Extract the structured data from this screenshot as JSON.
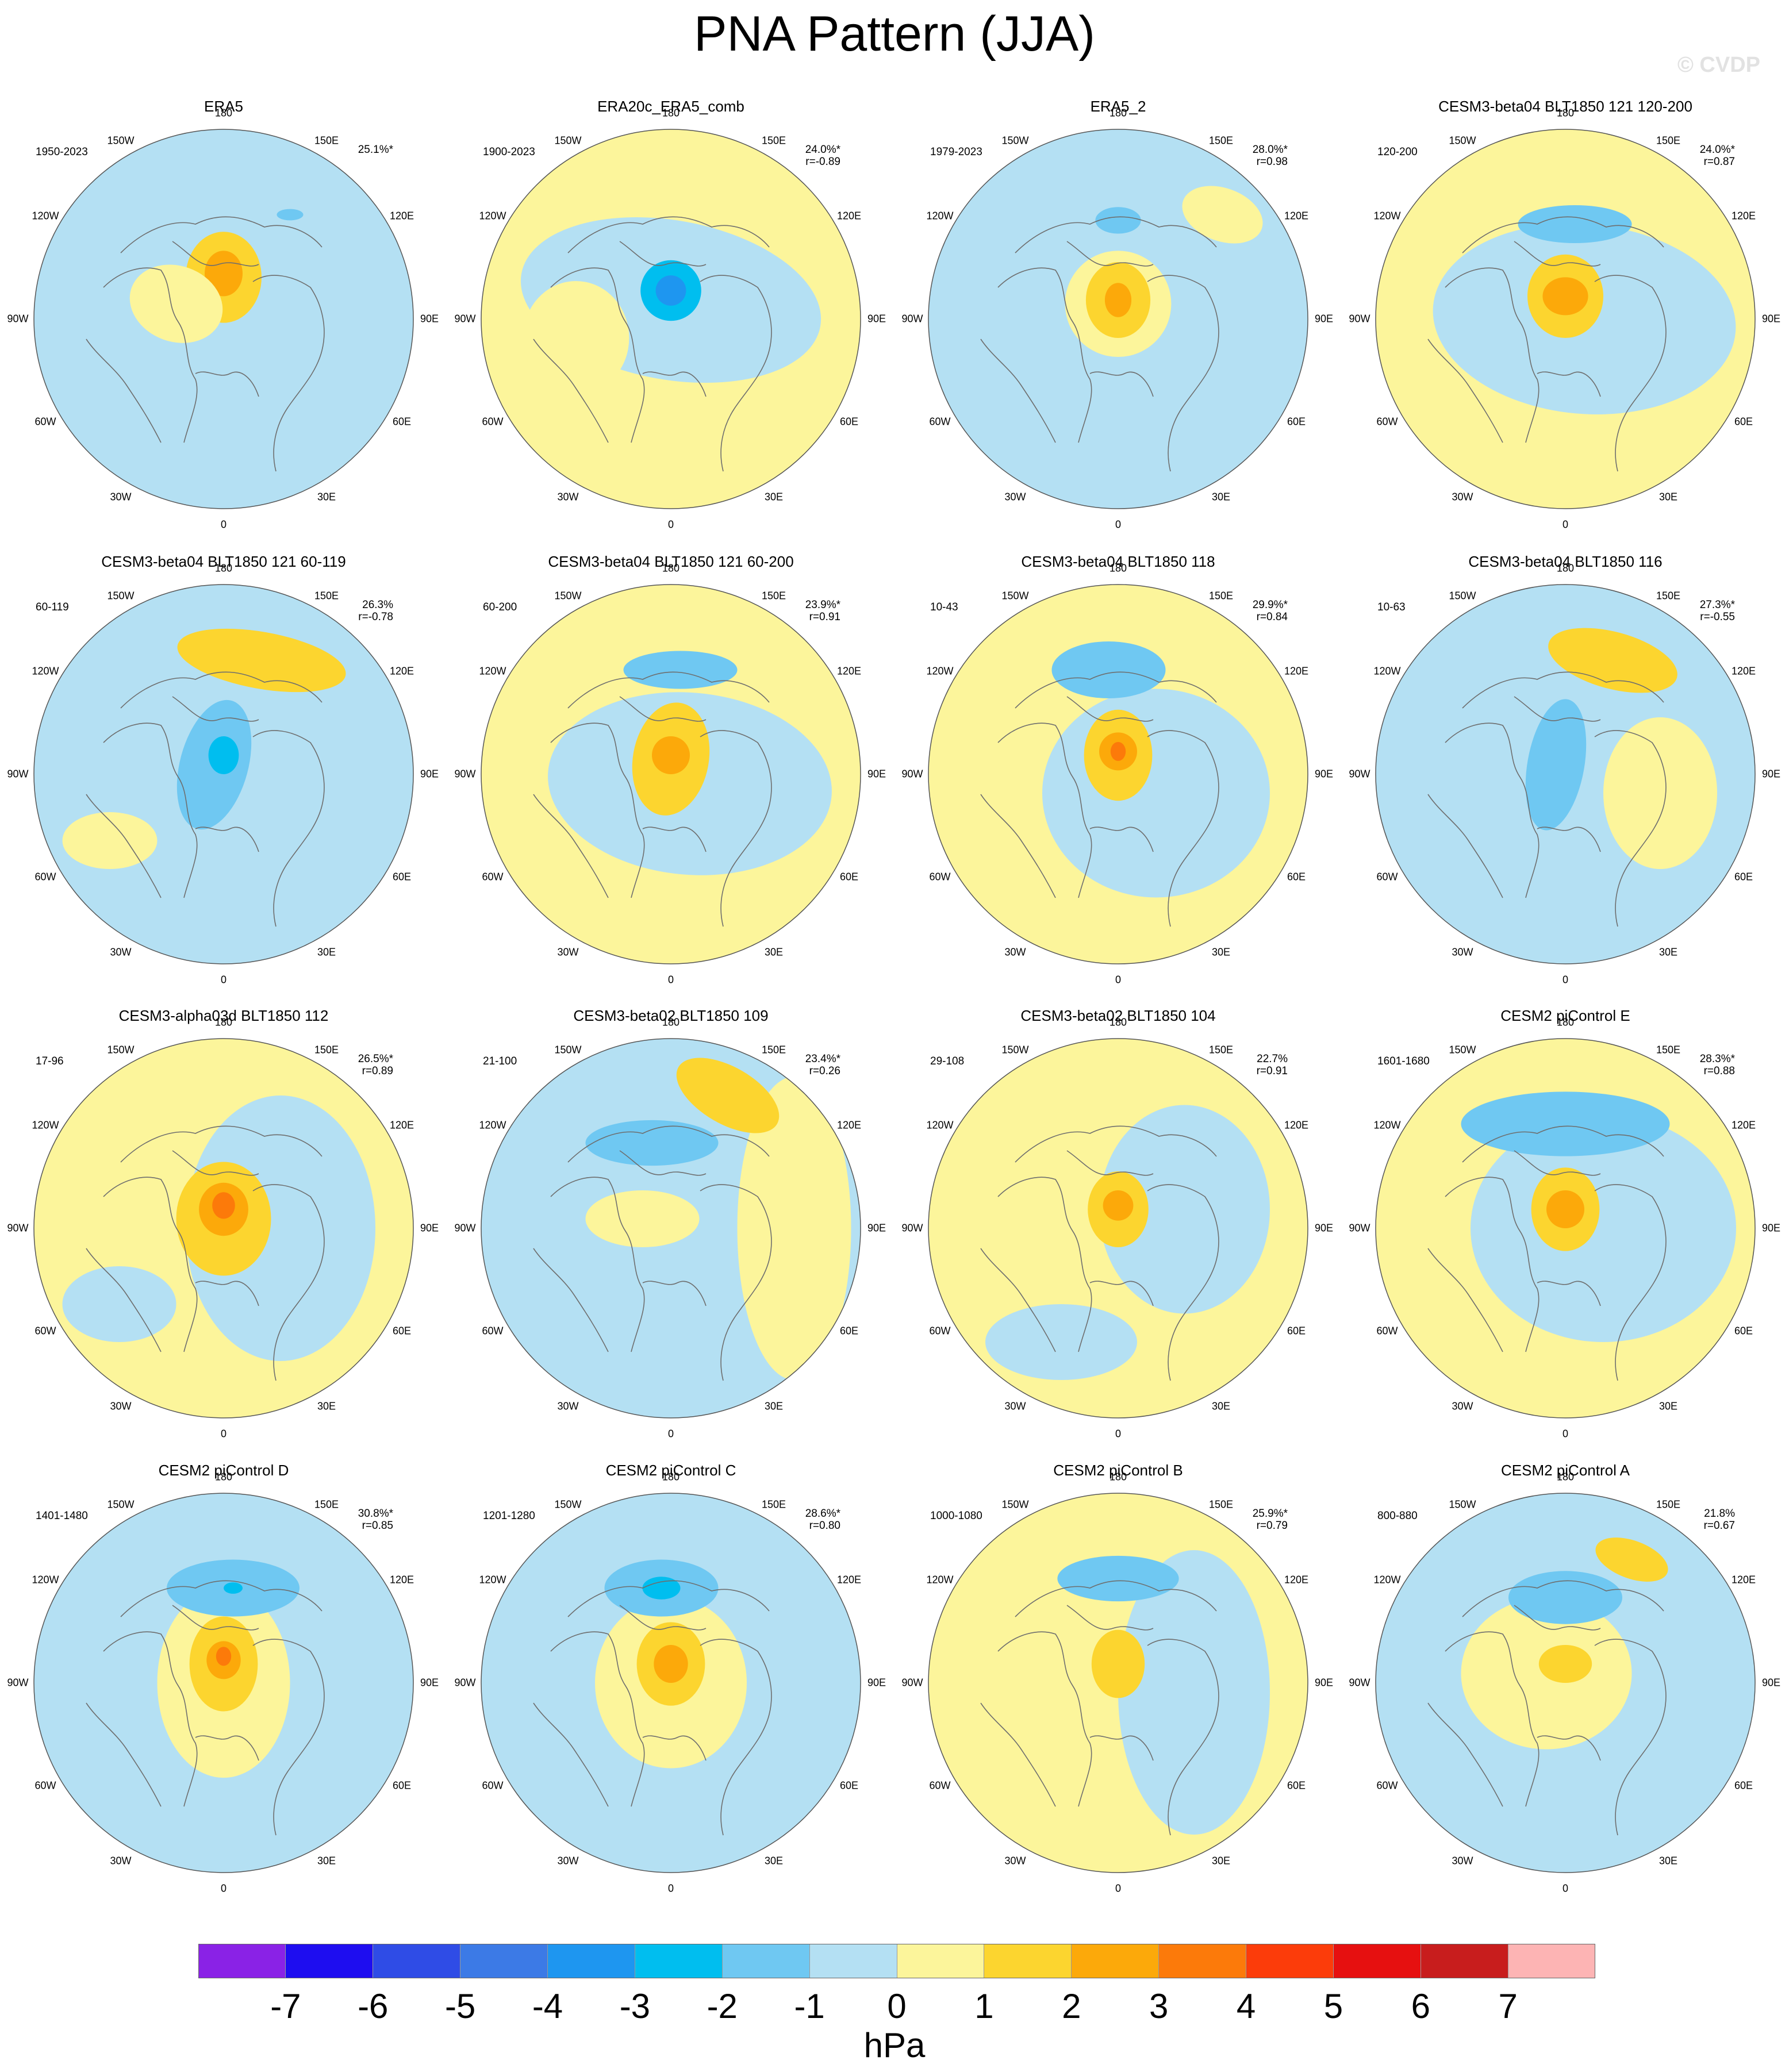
{
  "title": "PNA Pattern (JJA)",
  "watermark": "© CVDP",
  "lon_labels": {
    "top": "180",
    "bottom": "0",
    "upper_left": "150W",
    "upper_right": "150E",
    "left_upper": "120W",
    "right_upper": "120E",
    "left": "90W",
    "right": "90E",
    "left_lower": "60W",
    "right_lower": "60E",
    "lower_left": "30W",
    "lower_right": "30E"
  },
  "panels": [
    {
      "title": "ERA5",
      "years": "1950-2023",
      "pct": "25.1%*",
      "r": "",
      "background": 0,
      "features": [
        [
          0.0,
          -0.22,
          0.2,
          0.24,
          0,
          2
        ],
        [
          0.0,
          -0.24,
          0.1,
          0.12,
          0,
          3
        ],
        [
          -0.25,
          -0.08,
          0.25,
          0.2,
          20,
          1
        ],
        [
          0.35,
          -0.55,
          0.07,
          0.03,
          0,
          -1
        ]
      ]
    },
    {
      "title": "ERA20c_ERA5_comb",
      "years": "1900-2023",
      "pct": "24.0%*",
      "r": "r=-0.89",
      "background": 1,
      "features": [
        [
          0.0,
          -0.1,
          0.8,
          0.42,
          10,
          0
        ],
        [
          0.0,
          -0.15,
          0.16,
          0.16,
          0,
          -2
        ],
        [
          0.0,
          -0.15,
          0.08,
          0.08,
          0,
          -3
        ],
        [
          -0.5,
          0.1,
          0.28,
          0.3,
          0,
          1
        ]
      ]
    },
    {
      "title": "ERA5_2",
      "years": "1979-2023",
      "pct": "28.0%*",
      "r": "r=0.98",
      "background": 0,
      "features": [
        [
          0.0,
          -0.08,
          0.28,
          0.28,
          0,
          1
        ],
        [
          0.0,
          -0.1,
          0.17,
          0.2,
          0,
          2
        ],
        [
          0.0,
          -0.1,
          0.07,
          0.09,
          0,
          3
        ],
        [
          0.0,
          -0.52,
          0.12,
          0.07,
          0,
          -1
        ],
        [
          0.55,
          -0.55,
          0.22,
          0.14,
          20,
          1
        ]
      ]
    },
    {
      "title": "CESM3-beta04 BLT1850 121 120-200",
      "years": "120-200",
      "pct": "24.0%*",
      "r": "r=0.87",
      "background": 1,
      "features": [
        [
          0.1,
          0.0,
          0.8,
          0.5,
          5,
          0
        ],
        [
          0.05,
          -0.5,
          0.3,
          0.1,
          0,
          -1
        ],
        [
          0.0,
          -0.12,
          0.2,
          0.22,
          0,
          2
        ],
        [
          0.0,
          -0.12,
          0.12,
          0.1,
          0,
          3
        ]
      ]
    },
    {
      "title": "CESM3-beta04 BLT1850 121 60-119",
      "years": "60-119",
      "pct": "26.3%",
      "r": "r=-0.78",
      "background": 0,
      "features": [
        [
          0.2,
          -0.6,
          0.45,
          0.15,
          10,
          2
        ],
        [
          -0.05,
          -0.05,
          0.18,
          0.35,
          15,
          -1
        ],
        [
          0.0,
          -0.1,
          0.08,
          0.1,
          0,
          -2
        ],
        [
          -0.6,
          0.35,
          0.25,
          0.15,
          0,
          1
        ]
      ]
    },
    {
      "title": "CESM3-beta04 BLT1850 121 60-200",
      "years": "60-200",
      "pct": "23.9%*",
      "r": "r=0.91",
      "background": 1,
      "features": [
        [
          0.1,
          0.05,
          0.75,
          0.48,
          5,
          0
        ],
        [
          0.05,
          -0.55,
          0.3,
          0.1,
          0,
          -1
        ],
        [
          0.0,
          -0.08,
          0.2,
          0.3,
          10,
          2
        ],
        [
          0.0,
          -0.1,
          0.1,
          0.1,
          0,
          3
        ]
      ]
    },
    {
      "title": "CESM3-beta04 BLT1850 118",
      "years": "10-43",
      "pct": "29.9%*",
      "r": "r=0.84",
      "background": 1,
      "features": [
        [
          0.2,
          0.1,
          0.6,
          0.55,
          0,
          0
        ],
        [
          -0.05,
          -0.55,
          0.3,
          0.15,
          0,
          -1
        ],
        [
          0.0,
          -0.1,
          0.18,
          0.24,
          0,
          2
        ],
        [
          0.0,
          -0.12,
          0.1,
          0.1,
          0,
          3
        ],
        [
          0.0,
          -0.12,
          0.04,
          0.05,
          0,
          4
        ]
      ]
    },
    {
      "title": "CESM3-beta04 BLT1850 116",
      "years": "10-63",
      "pct": "27.3%*",
      "r": "r=-0.55",
      "background": 0,
      "features": [
        [
          0.25,
          -0.6,
          0.35,
          0.15,
          15,
          2
        ],
        [
          -0.05,
          -0.05,
          0.15,
          0.35,
          10,
          -1
        ],
        [
          0.5,
          0.1,
          0.3,
          0.4,
          0,
          1
        ]
      ]
    },
    {
      "title": "CESM3-alpha03d BLT1850 112",
      "years": "17-96",
      "pct": "26.5%*",
      "r": "r=0.89",
      "background": 1,
      "features": [
        [
          0.3,
          0.0,
          0.5,
          0.7,
          0,
          0
        ],
        [
          -0.55,
          0.4,
          0.3,
          0.2,
          0,
          0
        ],
        [
          0.0,
          -0.05,
          0.25,
          0.3,
          0,
          2
        ],
        [
          0.0,
          -0.1,
          0.13,
          0.14,
          0,
          3
        ],
        [
          0.0,
          -0.12,
          0.06,
          0.07,
          0,
          4
        ]
      ]
    },
    {
      "title": "CESM3-beta02 BLT1850 109",
      "years": "21-100",
      "pct": "23.4%*",
      "r": "r=0.26",
      "background": 0,
      "features": [
        [
          0.65,
          0.0,
          0.3,
          0.8,
          0,
          1
        ],
        [
          0.3,
          -0.7,
          0.3,
          0.15,
          30,
          2
        ],
        [
          -0.1,
          -0.45,
          0.35,
          0.12,
          0,
          -1
        ],
        [
          -0.15,
          -0.05,
          0.3,
          0.15,
          0,
          1
        ]
      ]
    },
    {
      "title": "CESM3-beta02 BLT1850 104",
      "years": "29-108",
      "pct": "22.7%",
      "r": "r=0.91",
      "background": 1,
      "features": [
        [
          0.35,
          -0.1,
          0.45,
          0.55,
          0,
          0
        ],
        [
          -0.3,
          0.6,
          0.4,
          0.2,
          0,
          0
        ],
        [
          0.0,
          -0.1,
          0.16,
          0.2,
          0,
          2
        ],
        [
          0.0,
          -0.12,
          0.08,
          0.08,
          0,
          3
        ]
      ]
    },
    {
      "title": "CESM2 piControl E",
      "years": "1601-1680",
      "pct": "28.3%*",
      "r": "r=0.88",
      "background": 1,
      "features": [
        [
          0.2,
          0.0,
          0.7,
          0.6,
          0,
          0
        ],
        [
          0.0,
          -0.55,
          0.55,
          0.17,
          0,
          -1
        ],
        [
          0.0,
          -0.1,
          0.18,
          0.22,
          0,
          2
        ],
        [
          0.0,
          -0.1,
          0.1,
          0.1,
          0,
          3
        ]
      ]
    },
    {
      "title": "CESM2 piControl D",
      "years": "1401-1480",
      "pct": "30.8%*",
      "r": "r=0.85",
      "background": 0,
      "features": [
        [
          0.0,
          0.0,
          0.35,
          0.5,
          0,
          1
        ],
        [
          0.05,
          -0.5,
          0.35,
          0.15,
          0,
          -1
        ],
        [
          0.05,
          -0.5,
          0.05,
          0.03,
          0,
          -2
        ],
        [
          0.0,
          -0.1,
          0.18,
          0.25,
          0,
          2
        ],
        [
          0.0,
          -0.12,
          0.09,
          0.1,
          0,
          3
        ],
        [
          0.0,
          -0.14,
          0.04,
          0.05,
          0,
          4
        ]
      ]
    },
    {
      "title": "CESM2 piControl C",
      "years": "1201-1280",
      "pct": "28.6%*",
      "r": "r=0.80",
      "background": 0,
      "features": [
        [
          0.0,
          0.0,
          0.4,
          0.45,
          0,
          1
        ],
        [
          -0.05,
          -0.5,
          0.3,
          0.15,
          0,
          -1
        ],
        [
          -0.05,
          -0.5,
          0.1,
          0.06,
          0,
          -2
        ],
        [
          0.0,
          -0.1,
          0.18,
          0.22,
          0,
          2
        ],
        [
          0.0,
          -0.1,
          0.09,
          0.1,
          0,
          3
        ]
      ]
    },
    {
      "title": "CESM2 piControl B",
      "years": "1000-1080",
      "pct": "25.9%*",
      "r": "r=0.79",
      "background": 1,
      "features": [
        [
          0.4,
          0.05,
          0.4,
          0.75,
          0,
          0
        ],
        [
          0.0,
          -0.55,
          0.32,
          0.12,
          0,
          -1
        ],
        [
          0.0,
          -0.1,
          0.14,
          0.18,
          0,
          2
        ]
      ]
    },
    {
      "title": "CESM2 piControl A",
      "years": "800-880",
      "pct": "21.8%",
      "r": "r=0.67",
      "background": 0,
      "features": [
        [
          -0.1,
          -0.05,
          0.45,
          0.4,
          0,
          1
        ],
        [
          0.35,
          -0.65,
          0.2,
          0.1,
          20,
          2
        ],
        [
          0.0,
          -0.45,
          0.3,
          0.14,
          0,
          -1
        ],
        [
          0.0,
          -0.1,
          0.14,
          0.1,
          0,
          2
        ]
      ]
    }
  ],
  "colorbar": {
    "units": "hPa",
    "ticks": [
      "-7",
      "-6",
      "-5",
      "-4",
      "-3",
      "-2",
      "-1",
      "0",
      "1",
      "2",
      "3",
      "4",
      "5",
      "6",
      "7"
    ],
    "colors": [
      "#8a22e6",
      "#1e0df0",
      "#2f4ce6",
      "#3c7ae6",
      "#1e96f0",
      "#00beef",
      "#6fc8f2",
      "#b4e0f3",
      "#fcf59b",
      "#fcd52f",
      "#fca90a",
      "#fc7a0a",
      "#fc3c0a",
      "#e61010",
      "#c81d1d",
      "#fdb4b4"
    ]
  },
  "level_colors": {
    "-3": "#1e96f0",
    "-2": "#00beef",
    "-1": "#6fc8f2",
    "0": "#b4e0f3",
    "1": "#fcf59b",
    "2": "#fcd52f",
    "3": "#fca90a",
    "4": "#fc7a0a"
  }
}
